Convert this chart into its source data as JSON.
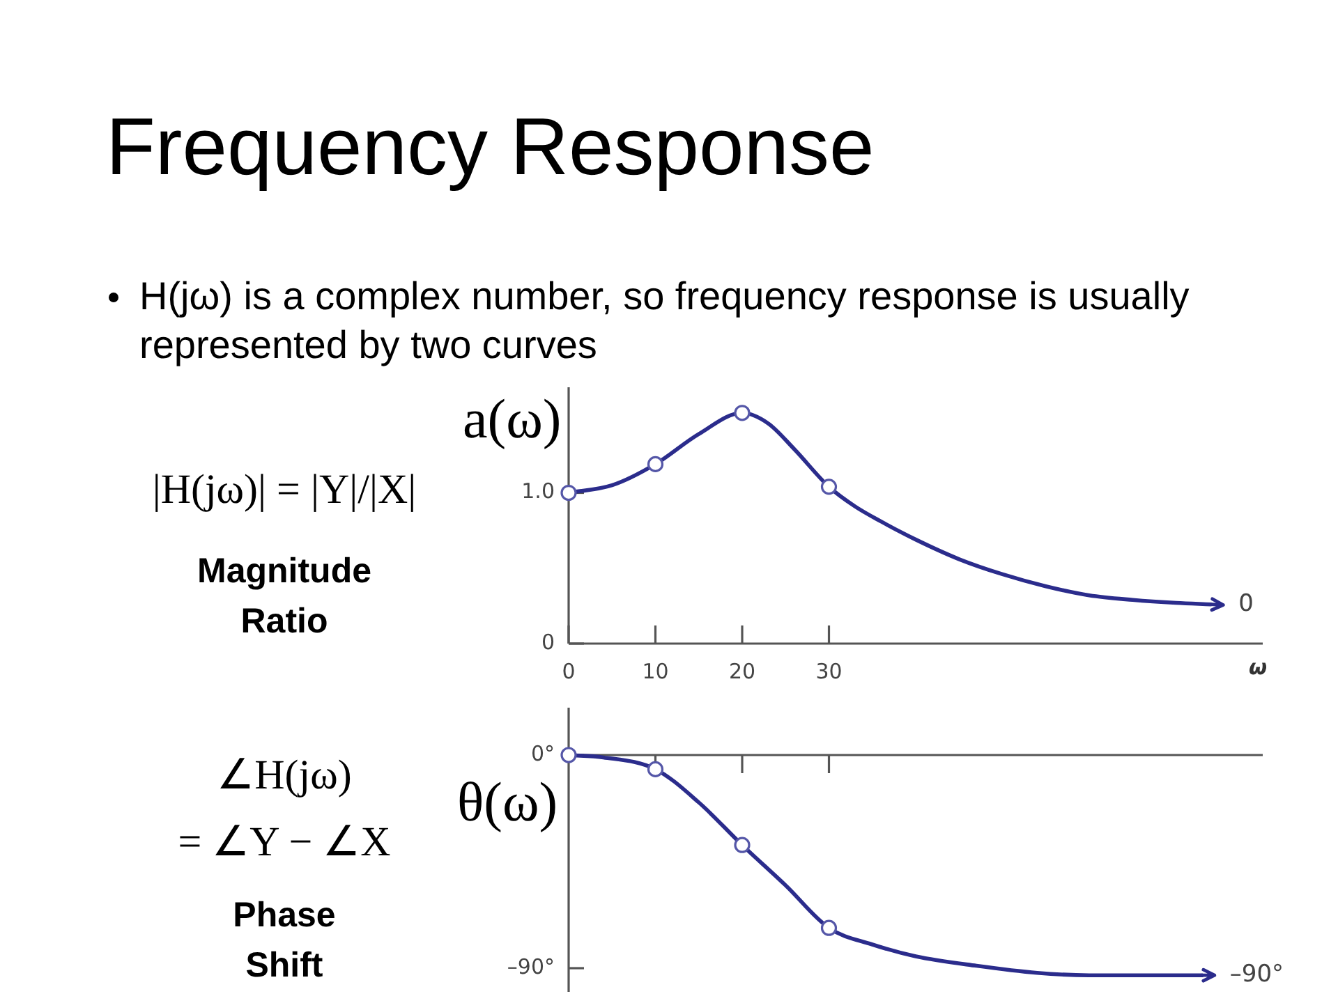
{
  "chart_data": [
    {
      "type": "line",
      "title": "Frequency Response",
      "subtitle": "H(jω) is a complex number, so frequency response is usually represented by two curves",
      "xlabel": "ω",
      "ylabel": "a(ω)",
      "annotations": [
        "|H(jω)| = |Y|/|X|",
        "Magnitude Ratio",
        {
          "text": "0",
          "x": 74,
          "y": 0.26
        }
      ],
      "series": [
        {
          "type": "line",
          "color": "#2b2c8c",
          "marker": "none",
          "x": [
            0,
            5,
            10,
            15,
            20,
            23,
            26,
            30,
            33,
            36,
            40,
            45,
            50,
            55,
            60,
            65,
            70,
            74
          ],
          "values": [
            1.0,
            1.05,
            1.19,
            1.39,
            1.53,
            1.46,
            1.29,
            1.04,
            0.91,
            0.81,
            0.69,
            0.56,
            0.46,
            0.38,
            0.32,
            0.29,
            0.27,
            0.26
          ]
        },
        {
          "type": "scatter",
          "color": "#5557a8",
          "marker": "circle",
          "x": [
            0,
            10,
            20,
            30
          ],
          "values": [
            1.0,
            1.19,
            1.53,
            1.04
          ]
        }
      ],
      "xlim": [
        0,
        80
      ],
      "xticks": [
        0,
        10,
        20,
        30
      ],
      "ylim": [
        0,
        1.7
      ],
      "yticks": [
        0,
        {
          "value": 1,
          "label": "1.0"
        }
      ]
    },
    {
      "type": "line",
      "ylabel": "θ(ω)",
      "annotations": [
        "∠H(jω)\n= ∠Y − ∠X",
        "Phase Shift",
        {
          "text": "–90°",
          "x": 73,
          "y": -93
        }
      ],
      "series": [
        {
          "type": "line",
          "color": "#2b2c8c",
          "marker": "none",
          "x": [
            0,
            4,
            10,
            15,
            20,
            25,
            30,
            35,
            40,
            47,
            54,
            60,
            66,
            73
          ],
          "values": [
            0,
            -1,
            -6,
            -20,
            -38,
            -55,
            -73,
            -80,
            -85,
            -89,
            -92,
            -93,
            -93,
            -93
          ]
        },
        {
          "type": "scatter",
          "color": "#5557a8",
          "marker": "circle",
          "x": [
            0,
            10,
            20,
            30
          ],
          "values": [
            0,
            -6,
            -38,
            -73
          ]
        }
      ],
      "xlim": [
        0,
        80
      ],
      "xticks": [
        {
          "value": 10,
          "label": null
        },
        {
          "value": 20,
          "label": null
        },
        {
          "value": 30,
          "label": null
        }
      ],
      "ylim": [
        -100,
        20
      ],
      "yticks": [
        {
          "value": 0,
          "label": "0°"
        },
        {
          "value": -90,
          "label": "–90°"
        }
      ],
      "tick_labels": "y"
    }
  ]
}
